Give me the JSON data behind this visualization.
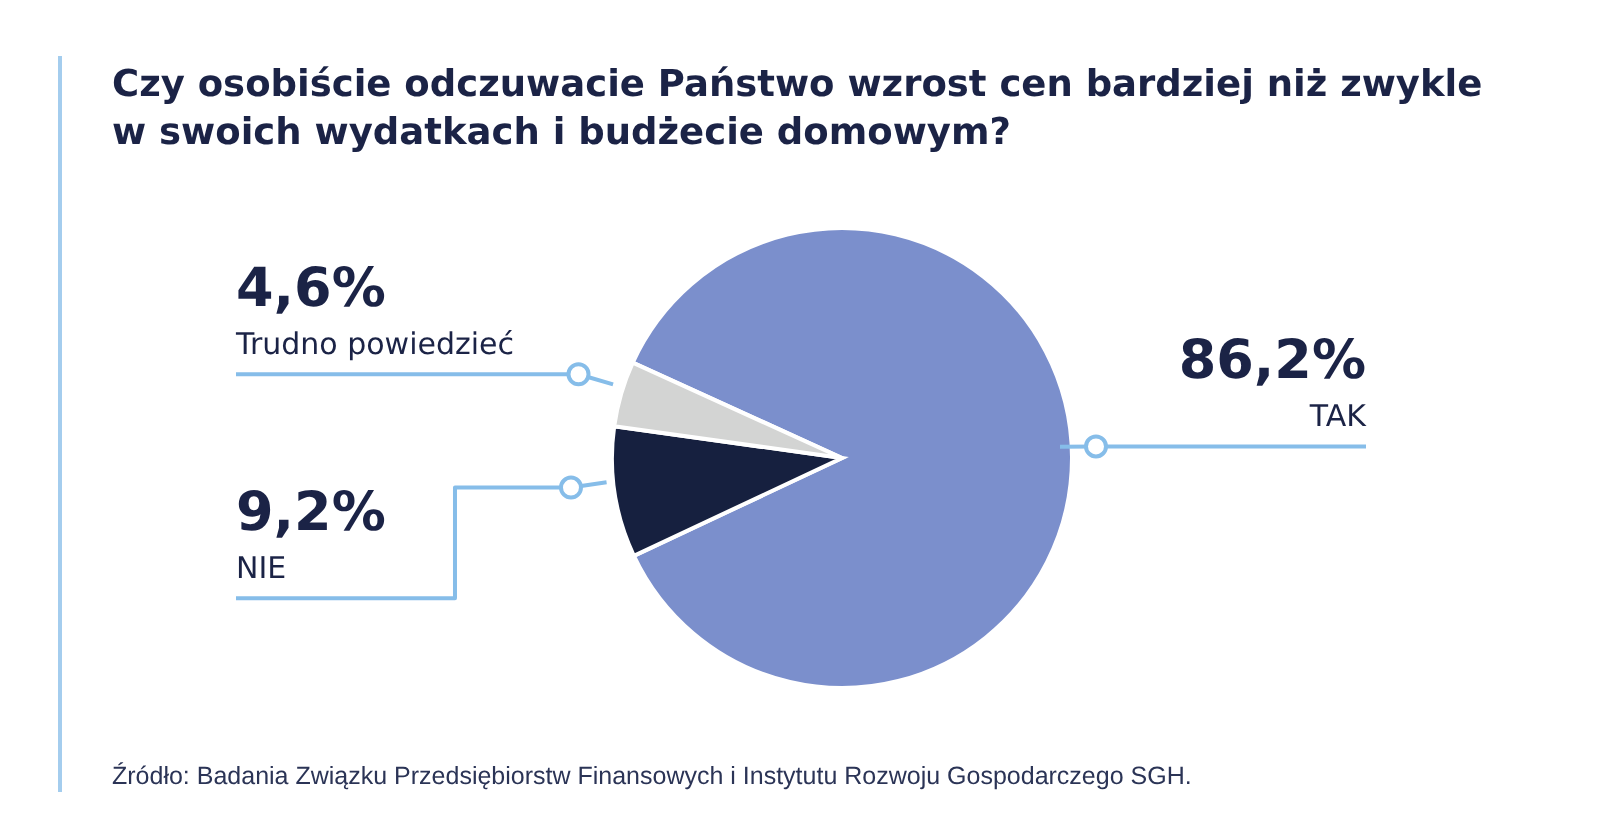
{
  "chart_data": {
    "type": "pie",
    "title": "Czy osobiście odczuwacie Państwo wzrost cen bardziej niż zwykle w swoich wydatkach i budżecie domowym?",
    "categories": [
      "TAK",
      "NIE",
      "Trudno powiedzieć"
    ],
    "values": [
      86.2,
      9.2,
      4.6
    ],
    "colors": [
      "#7b8fcc",
      "#16203f",
      "#d3d4d3"
    ],
    "value_labels": [
      "86,2%",
      "9,2%",
      "4,6%"
    ],
    "annotations": [
      "Źródło: Badania Związku Przedsiębiorstw Finansowych i Instytutu Rozwoju Gospodarczego SGH."
    ]
  }
}
